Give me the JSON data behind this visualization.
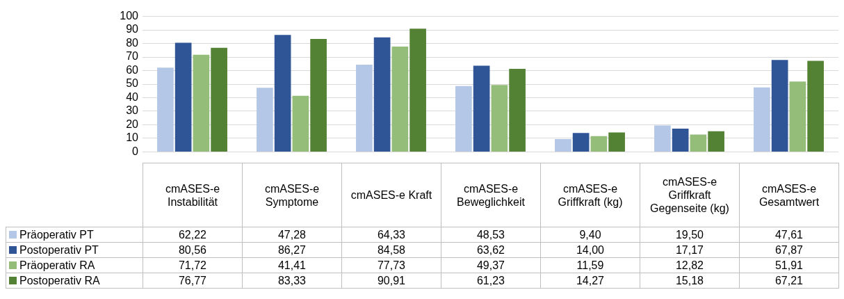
{
  "chart_data": {
    "type": "bar",
    "categories": [
      "cmASES-e Instabilität",
      "cmASES-e Symptome",
      "cmASES-e Kraft",
      "cmASES-e Beweglichkeit",
      "cmASES-e Griffkraft (kg)",
      "cmASES-e Griffkraft Gegenseite (kg)",
      "cmASES-e Gesamtwert"
    ],
    "series": [
      {
        "name": "Präoperativ PT",
        "color": "#b4c7e7",
        "values": [
          62.22,
          47.28,
          64.33,
          48.53,
          9.4,
          19.5,
          47.61
        ],
        "value_labels": [
          "62,22",
          "47,28",
          "64,33",
          "48,53",
          "9,40",
          "19,50",
          "47,61"
        ]
      },
      {
        "name": "Postoperativ PT",
        "color": "#2f5597",
        "values": [
          80.56,
          86.27,
          84.58,
          63.62,
          14.0,
          17.17,
          67.87
        ],
        "value_labels": [
          "80,56",
          "86,27",
          "84,58",
          "63,62",
          "14,00",
          "17,17",
          "67,87"
        ]
      },
      {
        "name": "Präoperativ RA",
        "color": "#93bd78",
        "values": [
          71.72,
          41.41,
          77.73,
          49.37,
          11.59,
          12.82,
          51.91
        ],
        "value_labels": [
          "71,72",
          "41,41",
          "77,73",
          "49,37",
          "11,59",
          "12,82",
          "51,91"
        ]
      },
      {
        "name": "Postoperativ RA",
        "color": "#548235",
        "values": [
          76.77,
          83.33,
          90.91,
          61.23,
          14.27,
          15.18,
          67.21
        ],
        "value_labels": [
          "76,77",
          "83,33",
          "90,91",
          "61,23",
          "14,27",
          "15,18",
          "67,21"
        ]
      }
    ],
    "ylim": [
      0,
      100
    ],
    "yticks": [
      0,
      10,
      20,
      30,
      40,
      50,
      60,
      70,
      80,
      90,
      100
    ],
    "grid": "y",
    "legend": "bottom"
  }
}
